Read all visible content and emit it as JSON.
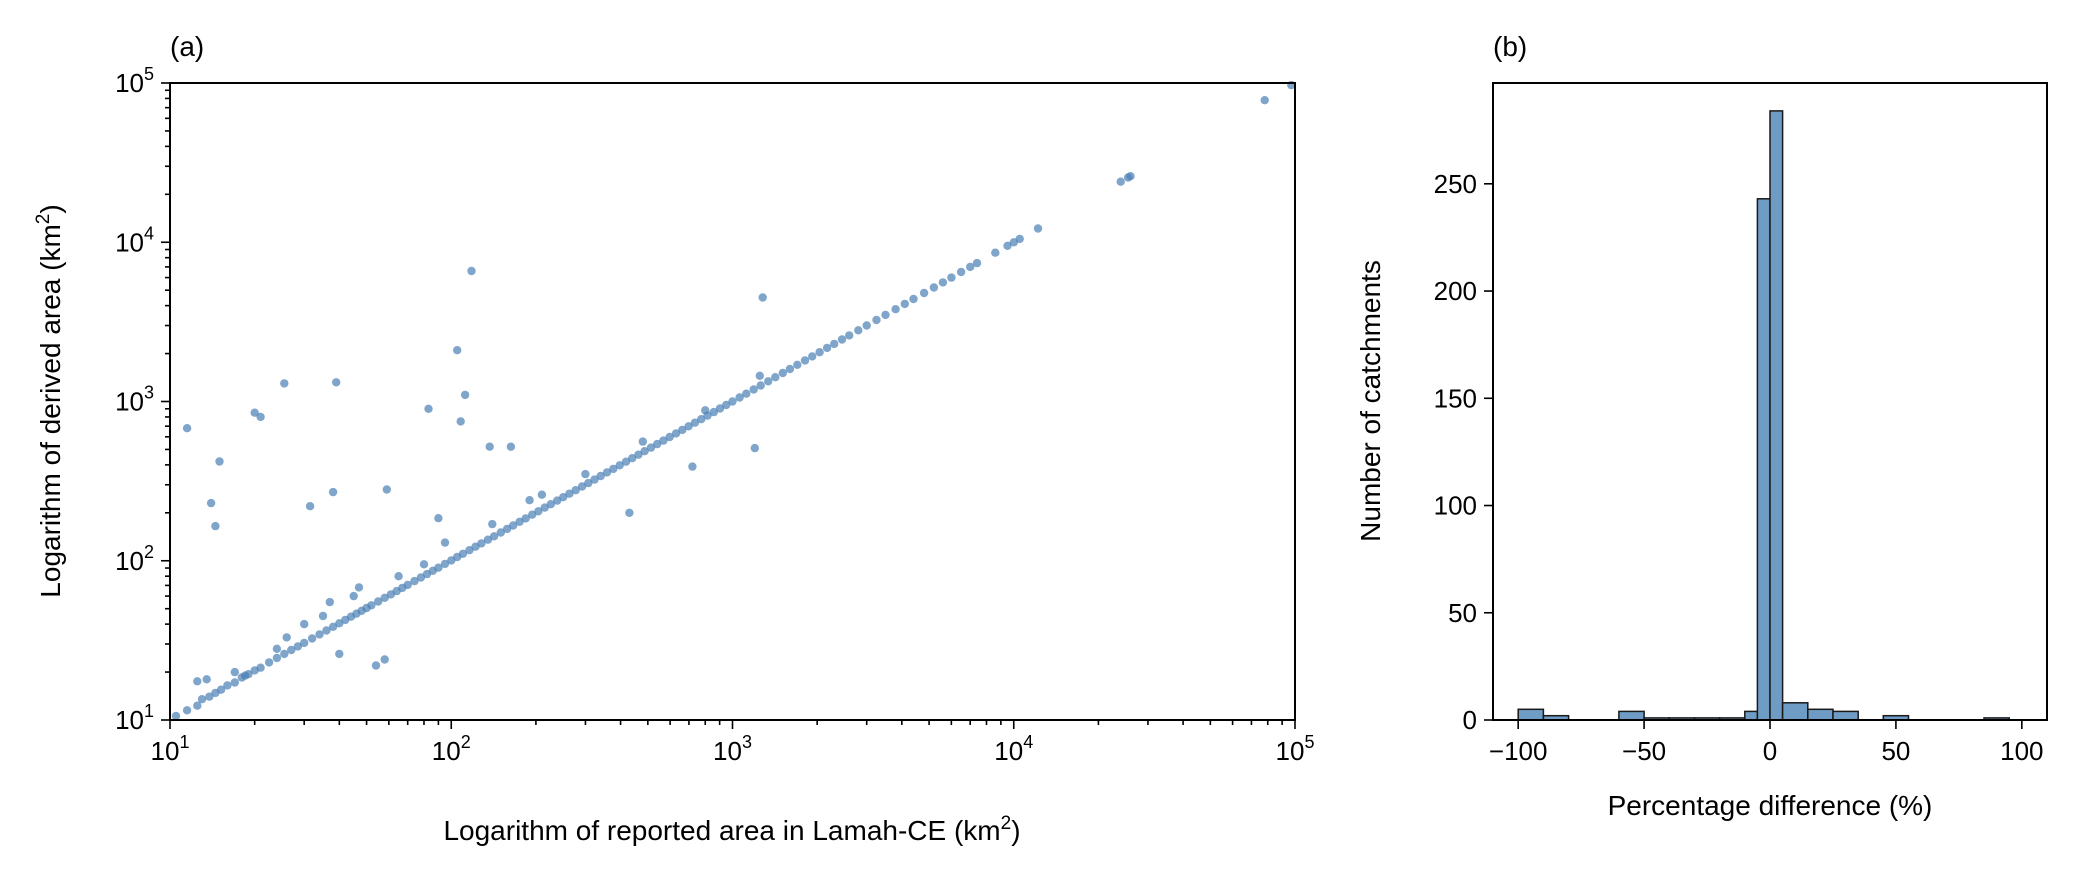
{
  "chart_data": [
    {
      "type": "scatter",
      "panel_label": "(a)",
      "xlabel": "Logarithm of reported area in Lamah-CE (km",
      "xlabel_sup": "2",
      "xlabel_end": ")",
      "ylabel": "Logarithm of derived area (km",
      "ylabel_sup": "2",
      "ylabel_end": ")",
      "xscale": "log",
      "yscale": "log",
      "xlim": [
        10,
        100000
      ],
      "ylim": [
        10,
        100000
      ],
      "xtick_labels": [
        {
          "base": "10",
          "exp": "1"
        },
        {
          "base": "10",
          "exp": "2"
        },
        {
          "base": "10",
          "exp": "3"
        },
        {
          "base": "10",
          "exp": "4"
        },
        {
          "base": "10",
          "exp": "5"
        }
      ],
      "ytick_labels": [
        {
          "base": "10",
          "exp": "1"
        },
        {
          "base": "10",
          "exp": "2"
        },
        {
          "base": "10",
          "exp": "3"
        },
        {
          "base": "10",
          "exp": "4"
        },
        {
          "base": "10",
          "exp": "5"
        }
      ],
      "marker_color": "#4a7fb5",
      "line_points": [
        [
          10.5,
          10.6
        ],
        [
          11.5,
          11.5
        ],
        [
          12.5,
          12.3
        ],
        [
          13,
          13.5
        ],
        [
          13.8,
          14
        ],
        [
          14.5,
          14.8
        ],
        [
          15.2,
          15.5
        ],
        [
          16,
          16.5
        ],
        [
          17,
          17.2
        ],
        [
          18,
          18.5
        ],
        [
          19,
          19.4
        ],
        [
          20,
          20.5
        ],
        [
          21,
          21.3
        ],
        [
          22.5,
          23
        ],
        [
          24,
          24.5
        ],
        [
          25.5,
          26
        ],
        [
          27,
          27.5
        ],
        [
          28.5,
          29
        ],
        [
          30,
          30.5
        ],
        [
          32,
          32.5
        ],
        [
          34,
          34.5
        ],
        [
          36,
          36.5
        ],
        [
          38,
          38.5
        ],
        [
          40,
          40.5
        ],
        [
          42,
          42.5
        ],
        [
          44,
          44.5
        ],
        [
          46,
          46.5
        ],
        [
          48,
          48.5
        ],
        [
          50,
          50.5
        ],
        [
          52,
          52.5
        ],
        [
          55,
          55.5
        ],
        [
          58,
          58.5
        ],
        [
          61,
          61.5
        ],
        [
          64,
          64.5
        ],
        [
          67,
          67.5
        ],
        [
          70,
          70.5
        ],
        [
          74,
          74.5
        ],
        [
          78,
          78.5
        ],
        [
          82,
          82.5
        ],
        [
          86,
          86.5
        ],
        [
          90,
          90.5
        ],
        [
          95,
          95.5
        ],
        [
          100,
          100.5
        ],
        [
          105,
          105.5
        ],
        [
          110,
          110.5
        ],
        [
          116,
          116.5
        ],
        [
          122,
          122.5
        ],
        [
          128,
          128.5
        ],
        [
          135,
          135.5
        ],
        [
          142,
          142.5
        ],
        [
          150,
          150.5
        ],
        [
          158,
          158.5
        ],
        [
          166,
          166.5
        ],
        [
          175,
          175.5
        ],
        [
          184,
          184.5
        ],
        [
          194,
          194.5
        ],
        [
          204,
          204.5
        ],
        [
          215,
          215.5
        ],
        [
          226,
          226.5
        ],
        [
          238,
          238.5
        ],
        [
          250,
          250.5
        ],
        [
          263,
          263.5
        ],
        [
          277,
          277.5
        ],
        [
          292,
          292.5
        ],
        [
          307,
          307.5
        ],
        [
          323,
          323.5
        ],
        [
          340,
          340.5
        ],
        [
          358,
          358.5
        ],
        [
          377,
          377.5
        ],
        [
          397,
          397.5
        ],
        [
          418,
          418.5
        ],
        [
          440,
          440.5
        ],
        [
          463,
          463.5
        ],
        [
          487,
          487.5
        ],
        [
          513,
          513.5
        ],
        [
          540,
          540.5
        ],
        [
          568,
          568.5
        ],
        [
          598,
          598.5
        ],
        [
          630,
          630.5
        ],
        [
          663,
          663.5
        ],
        [
          698,
          698.5
        ],
        [
          735,
          735.5
        ],
        [
          774,
          774.5
        ],
        [
          815,
          815.5
        ],
        [
          858,
          858.5
        ],
        [
          903,
          903.5
        ],
        [
          950,
          950.5
        ],
        [
          1000,
          1000
        ],
        [
          1060,
          1060
        ],
        [
          1120,
          1120
        ],
        [
          1190,
          1190
        ],
        [
          1260,
          1260
        ],
        [
          1340,
          1340
        ],
        [
          1420,
          1420
        ],
        [
          1510,
          1510
        ],
        [
          1600,
          1600
        ],
        [
          1700,
          1700
        ],
        [
          1810,
          1810
        ],
        [
          1920,
          1920
        ],
        [
          2040,
          2040
        ],
        [
          2170,
          2170
        ],
        [
          2300,
          2300
        ],
        [
          2450,
          2450
        ],
        [
          2600,
          2600
        ],
        [
          2800,
          2800
        ],
        [
          3000,
          3000
        ],
        [
          3250,
          3250
        ],
        [
          3500,
          3500
        ],
        [
          3800,
          3800
        ],
        [
          4100,
          4100
        ],
        [
          4400,
          4400
        ],
        [
          4800,
          4800
        ],
        [
          5200,
          5200
        ],
        [
          5600,
          5600
        ],
        [
          6000,
          6000
        ],
        [
          6500,
          6500
        ],
        [
          7000,
          7000
        ],
        [
          7400,
          7400
        ],
        [
          8600,
          8600
        ],
        [
          9500,
          9500
        ],
        [
          10000,
          10000
        ],
        [
          10500,
          10500
        ],
        [
          12200,
          12200
        ],
        [
          24000,
          24000
        ],
        [
          25500,
          25500
        ],
        [
          26000,
          26000
        ],
        [
          78000,
          78000
        ],
        [
          97000,
          97000
        ]
      ],
      "outliers": [
        [
          11.5,
          680
        ],
        [
          14,
          230
        ],
        [
          14.5,
          165
        ],
        [
          15,
          420
        ],
        [
          20,
          850
        ],
        [
          21,
          800
        ],
        [
          25.5,
          1300
        ],
        [
          31.5,
          220
        ],
        [
          38,
          270
        ],
        [
          39,
          1320
        ],
        [
          40,
          26
        ],
        [
          54,
          22
        ],
        [
          58,
          24
        ],
        [
          59,
          280
        ],
        [
          47,
          68
        ],
        [
          37,
          55
        ],
        [
          83,
          900
        ],
        [
          90,
          185
        ],
        [
          105,
          2100
        ],
        [
          108,
          750
        ],
        [
          112,
          1100
        ],
        [
          118,
          6600
        ],
        [
          137,
          520
        ],
        [
          163,
          520
        ],
        [
          430,
          200
        ],
        [
          720,
          390
        ],
        [
          1200,
          510
        ],
        [
          1280,
          4500
        ],
        [
          12.5,
          17.5
        ],
        [
          13.5,
          18
        ],
        [
          17,
          20
        ],
        [
          18.5,
          19
        ],
        [
          24,
          28
        ],
        [
          26,
          33
        ],
        [
          30,
          40
        ],
        [
          35,
          45
        ],
        [
          45,
          60
        ],
        [
          65,
          80
        ],
        [
          80,
          95
        ],
        [
          95,
          130
        ],
        [
          140,
          170
        ],
        [
          190,
          240
        ],
        [
          210,
          260
        ],
        [
          300,
          350
        ],
        [
          480,
          560
        ],
        [
          800,
          880
        ],
        [
          1250,
          1450
        ]
      ]
    },
    {
      "type": "bar",
      "panel_label": "(b)",
      "xlabel": "Percentage difference (%)",
      "ylabel": "Number of catchments",
      "xlim": [
        -110,
        110
      ],
      "ylim": [
        0,
        297
      ],
      "xticks": [
        "−100",
        "−50",
        "0",
        "50",
        "100"
      ],
      "yticks": [
        "0",
        "50",
        "100",
        "150",
        "200",
        "250"
      ],
      "bar_color": "#6f9cc4",
      "bins": [
        {
          "x0": -100,
          "x1": -90,
          "count": 5
        },
        {
          "x0": -90,
          "x1": -80,
          "count": 2
        },
        {
          "x0": -80,
          "x1": -70,
          "count": 0
        },
        {
          "x0": -70,
          "x1": -60,
          "count": 0
        },
        {
          "x0": -60,
          "x1": -50,
          "count": 4
        },
        {
          "x0": -50,
          "x1": -40,
          "count": 1
        },
        {
          "x0": -40,
          "x1": -30,
          "count": 1
        },
        {
          "x0": -30,
          "x1": -20,
          "count": 1
        },
        {
          "x0": -20,
          "x1": -10,
          "count": 1
        },
        {
          "x0": -10,
          "x1": -5,
          "count": 4
        },
        {
          "x0": -5,
          "x1": 0,
          "count": 243
        },
        {
          "x0": 0,
          "x1": 5,
          "count": 284
        },
        {
          "x0": 5,
          "x1": 15,
          "count": 8
        },
        {
          "x0": 15,
          "x1": 25,
          "count": 5
        },
        {
          "x0": 25,
          "x1": 35,
          "count": 4
        },
        {
          "x0": 35,
          "x1": 45,
          "count": 0
        },
        {
          "x0": 45,
          "x1": 55,
          "count": 2
        },
        {
          "x0": 55,
          "x1": 65,
          "count": 0
        },
        {
          "x0": 65,
          "x1": 75,
          "count": 0
        },
        {
          "x0": 75,
          "x1": 85,
          "count": 0
        },
        {
          "x0": 85,
          "x1": 95,
          "count": 1
        }
      ]
    }
  ]
}
